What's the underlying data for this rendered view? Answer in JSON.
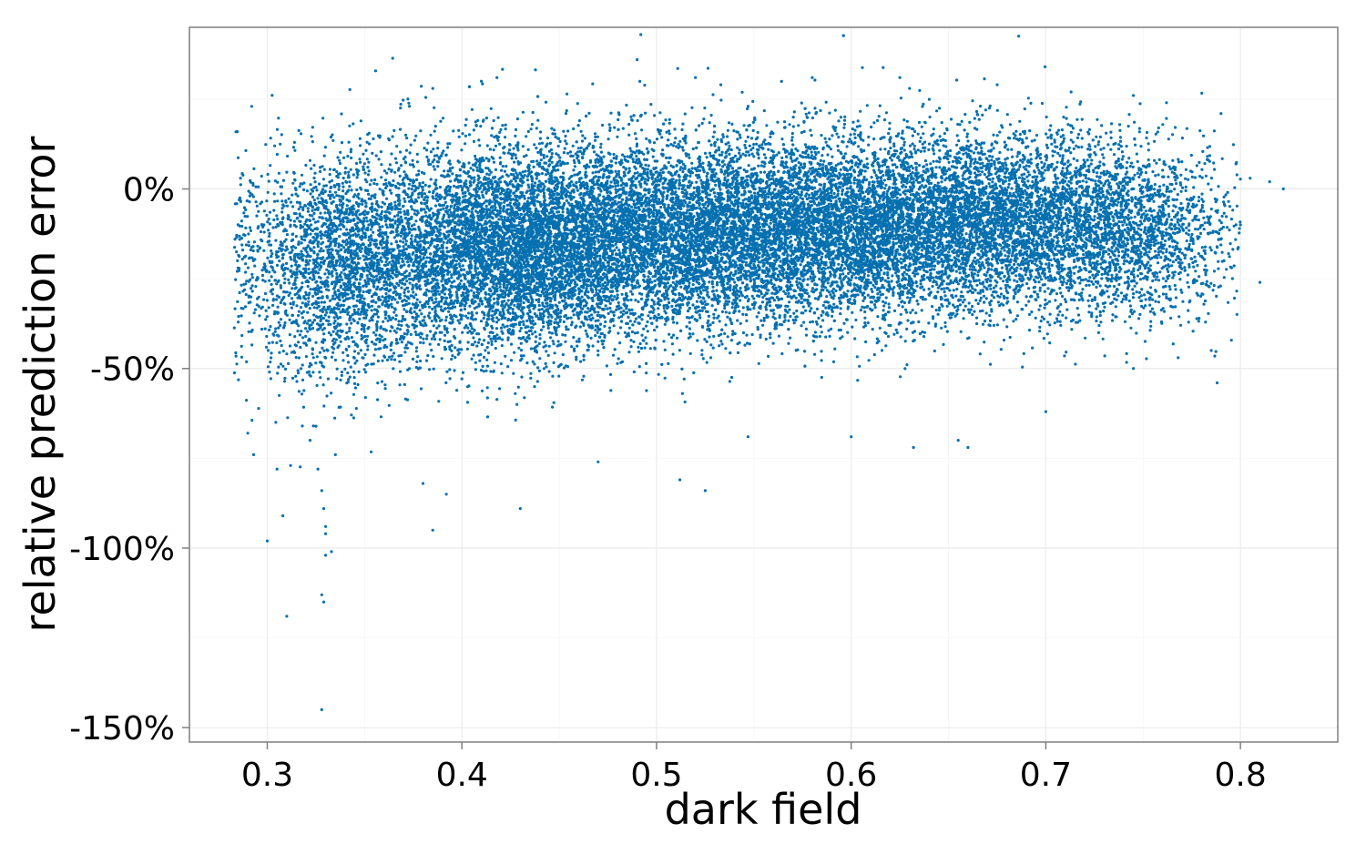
{
  "chart_data": {
    "type": "scatter",
    "title": "",
    "xlabel": "dark field",
    "ylabel": "relative prediction error",
    "xlim": [
      0.26,
      0.85
    ],
    "ylim": [
      -1.54,
      0.45
    ],
    "x_ticks": [
      0.3,
      0.4,
      0.5,
      0.6,
      0.7,
      0.8
    ],
    "x_tick_labels": [
      "0.3",
      "0.4",
      "0.5",
      "0.6",
      "0.7",
      "0.8"
    ],
    "y_ticks": [
      0,
      -0.5,
      -1.0,
      -1.5
    ],
    "y_tick_labels": [
      "0%",
      "-50%",
      "-100%",
      "-150%"
    ],
    "grid": true,
    "legend": "none",
    "point_color": "#0570b0",
    "series": [
      {
        "points": [
          [
            0.285,
            -0.22
          ],
          [
            0.292,
            0.23
          ],
          [
            0.29,
            -0.68
          ],
          [
            0.293,
            -0.74
          ],
          [
            0.3,
            -0.98
          ],
          [
            0.305,
            -0.78
          ],
          [
            0.308,
            -0.91
          ],
          [
            0.31,
            -1.19
          ],
          [
            0.312,
            -0.77
          ],
          [
            0.318,
            -0.66
          ],
          [
            0.322,
            -0.7
          ],
          [
            0.326,
            -0.78
          ],
          [
            0.328,
            -0.84
          ],
          [
            0.329,
            -0.89
          ],
          [
            0.33,
            -0.94
          ],
          [
            0.33,
            -0.96
          ],
          [
            0.33,
            -1.02
          ],
          [
            0.328,
            -1.13
          ],
          [
            0.329,
            -1.15
          ],
          [
            0.328,
            -1.45
          ],
          [
            0.333,
            -1.01
          ],
          [
            0.335,
            -0.74
          ],
          [
            0.385,
            0.28
          ],
          [
            0.41,
            0.3
          ],
          [
            0.418,
            0.31
          ],
          [
            0.49,
            0.36
          ],
          [
            0.52,
            0.31
          ],
          [
            0.533,
            0.29
          ],
          [
            0.58,
            0.31
          ],
          [
            0.625,
            0.31
          ],
          [
            0.63,
            0.28
          ],
          [
            0.675,
            0.29
          ],
          [
            0.713,
            0.27
          ],
          [
            0.745,
            0.26
          ],
          [
            0.762,
            0.24
          ],
          [
            0.79,
            0.21
          ],
          [
            0.805,
            0.03
          ],
          [
            0.815,
            0.02
          ],
          [
            0.822,
            0.0
          ],
          [
            0.81,
            -0.26
          ],
          [
            0.8,
            -0.1
          ],
          [
            0.788,
            -0.54
          ],
          [
            0.785,
            -0.45
          ],
          [
            0.768,
            -0.47
          ],
          [
            0.745,
            -0.5
          ],
          [
            0.7,
            -0.62
          ],
          [
            0.66,
            -0.72
          ],
          [
            0.655,
            -0.7
          ],
          [
            0.632,
            -0.72
          ],
          [
            0.6,
            -0.69
          ],
          [
            0.547,
            -0.69
          ],
          [
            0.525,
            -0.84
          ],
          [
            0.512,
            -0.81
          ],
          [
            0.47,
            -0.76
          ],
          [
            0.43,
            -0.89
          ],
          [
            0.385,
            -0.95
          ],
          [
            0.38,
            -0.82
          ],
          [
            0.392,
            -0.85
          ]
        ]
      }
    ],
    "clusters": [
      {
        "cx": 0.34,
        "cy": -0.21,
        "sx": 0.028,
        "sy": 0.15,
        "n": 2600
      },
      {
        "cx": 0.425,
        "cy": -0.17,
        "sx": 0.035,
        "sy": 0.14,
        "n": 5200
      },
      {
        "cx": 0.51,
        "cy": -0.13,
        "sx": 0.045,
        "sy": 0.13,
        "n": 6200
      },
      {
        "cx": 0.6,
        "cy": -0.11,
        "sx": 0.045,
        "sy": 0.125,
        "n": 5000
      },
      {
        "cx": 0.685,
        "cy": -0.09,
        "sx": 0.04,
        "sy": 0.12,
        "n": 3800
      },
      {
        "cx": 0.75,
        "cy": -0.13,
        "sx": 0.025,
        "sy": 0.12,
        "n": 1200
      }
    ]
  }
}
